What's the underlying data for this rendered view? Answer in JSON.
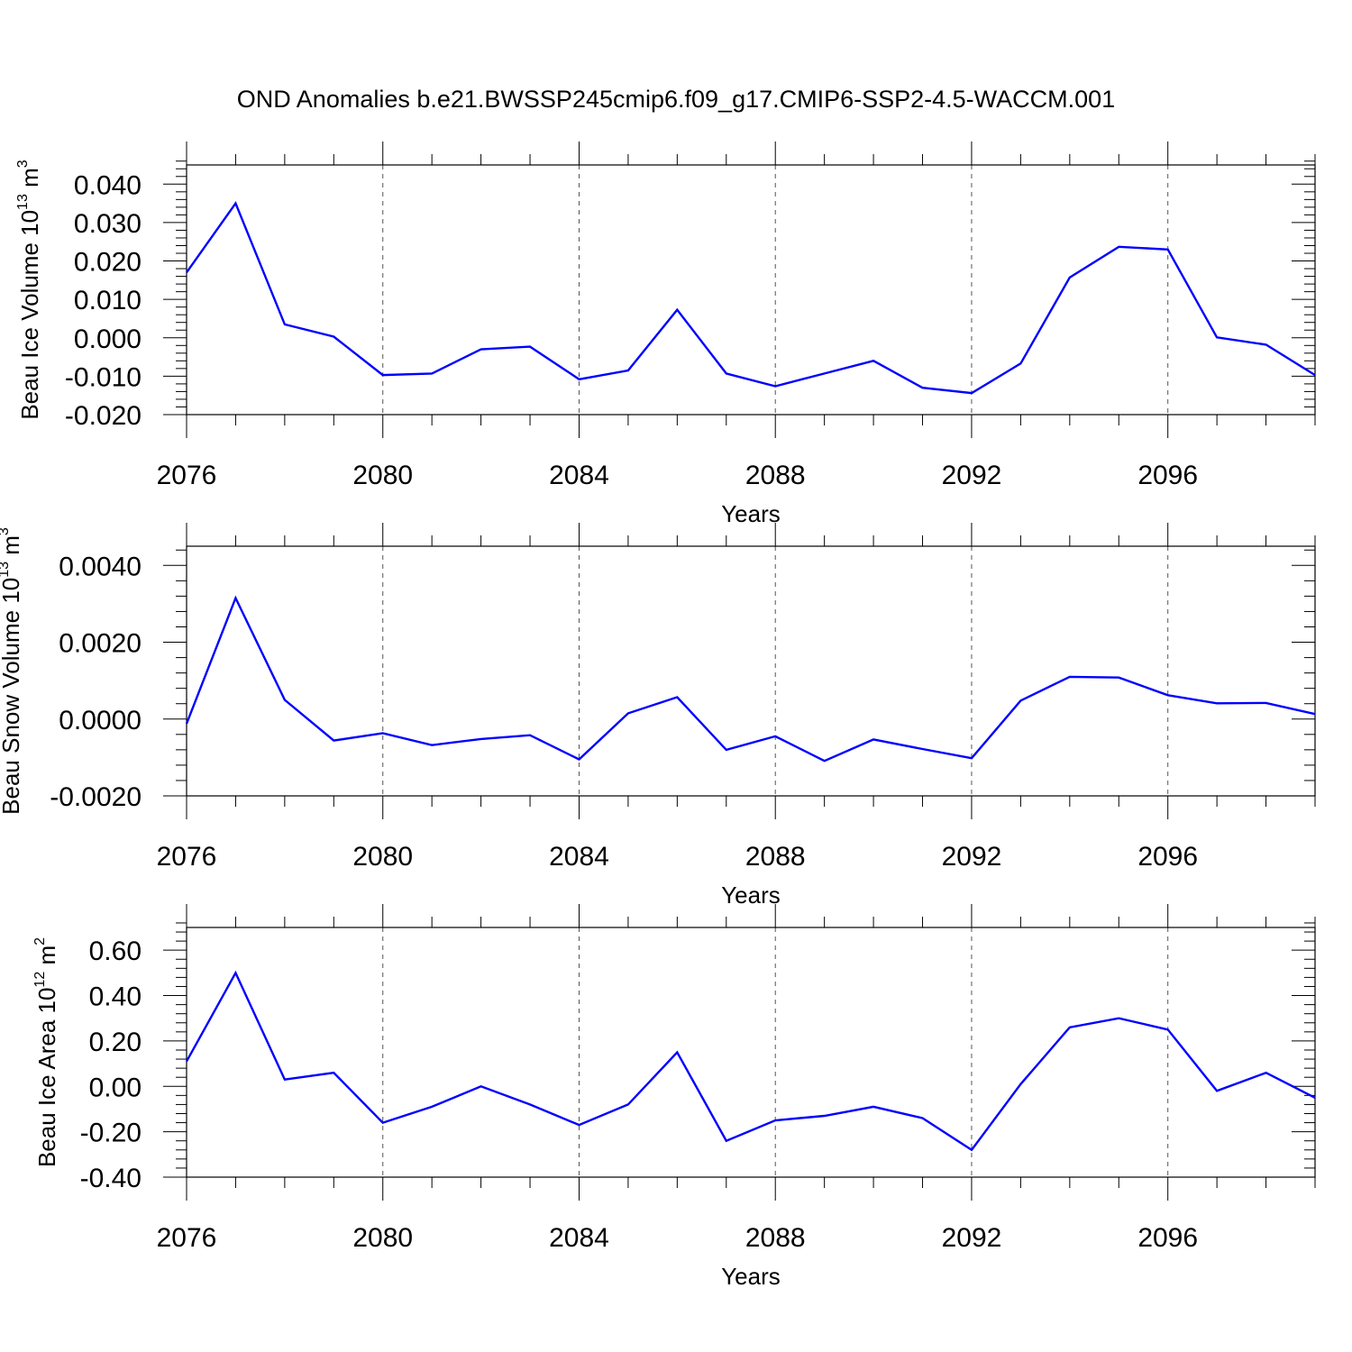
{
  "title": "OND Anomalies b.e21.BWSSP245cmip6.f09_g17.CMIP6-SSP2-4.5-WACCM.001",
  "series_color": "#0000ff",
  "chart_data": [
    {
      "type": "line",
      "ylabel": "Beau Ice Volume 10",
      "ylabel_sup": "13",
      "ylabel_unit": " m",
      "ylabel_unit_sup": "3",
      "xlabel": "Years",
      "xlim": [
        2076,
        2099
      ],
      "ylim": [
        -0.02,
        0.045
      ],
      "xticks": [
        2076,
        2080,
        2084,
        2088,
        2092,
        2096
      ],
      "yticks": [
        -0.02,
        -0.01,
        0.0,
        0.01,
        0.02,
        0.03,
        0.04
      ],
      "ytick_labels": [
        "-0.020",
        "-0.010",
        "0.000",
        "0.010",
        "0.020",
        "0.030",
        "0.040"
      ],
      "grid_x": [
        2080,
        2084,
        2088,
        2092,
        2096
      ],
      "x": [
        2076,
        2077,
        2078,
        2079,
        2080,
        2081,
        2082,
        2083,
        2084,
        2085,
        2086,
        2087,
        2088,
        2089,
        2090,
        2091,
        2092,
        2093,
        2094,
        2095,
        2096,
        2097,
        2098,
        2099
      ],
      "values": [
        0.017,
        0.035,
        0.0035,
        0.0003,
        -0.0097,
        -0.0093,
        -0.003,
        -0.0023,
        -0.0108,
        -0.0085,
        0.0073,
        -0.0093,
        -0.0126,
        -0.0093,
        -0.006,
        -0.013,
        -0.0144,
        -0.0067,
        0.0157,
        0.0237,
        0.023,
        0.0001,
        -0.0018,
        -0.0097
      ]
    },
    {
      "type": "line",
      "ylabel": "Beau Snow Volume 10",
      "ylabel_sup": "13",
      "ylabel_unit": " m",
      "ylabel_unit_sup": "3",
      "xlabel": "Years",
      "xlim": [
        2076,
        2099
      ],
      "ylim": [
        -0.002,
        0.0045
      ],
      "xticks": [
        2076,
        2080,
        2084,
        2088,
        2092,
        2096
      ],
      "yticks": [
        -0.002,
        0.0,
        0.002,
        0.004
      ],
      "ytick_labels": [
        "-0.0020",
        "0.0000",
        "0.0020",
        "0.0040"
      ],
      "grid_x": [
        2080,
        2084,
        2088,
        2092,
        2096
      ],
      "x": [
        2076,
        2077,
        2078,
        2079,
        2080,
        2081,
        2082,
        2083,
        2084,
        2085,
        2086,
        2087,
        2088,
        2089,
        2090,
        2091,
        2092,
        2093,
        2094,
        2095,
        2096,
        2097,
        2098,
        2099
      ],
      "values": [
        -0.00012,
        0.00315,
        0.0005,
        -0.00056,
        -0.00037,
        -0.00068,
        -0.00052,
        -0.00042,
        -0.00105,
        0.00015,
        0.00057,
        -0.0008,
        -0.00045,
        -0.00109,
        -0.00053,
        -0.00078,
        -0.00102,
        0.00048,
        0.0011,
        0.00108,
        0.00062,
        0.00041,
        0.00042,
        0.00013
      ]
    },
    {
      "type": "line",
      "ylabel": "Beau Ice Area 10",
      "ylabel_sup": "12",
      "ylabel_unit": " m",
      "ylabel_unit_sup": "2",
      "xlabel": "Years",
      "xlim": [
        2076,
        2099
      ],
      "ylim": [
        -0.4,
        0.7
      ],
      "xticks": [
        2076,
        2080,
        2084,
        2088,
        2092,
        2096
      ],
      "yticks": [
        -0.4,
        -0.2,
        0.0,
        0.2,
        0.4,
        0.6
      ],
      "ytick_labels": [
        "-0.40",
        "-0.20",
        "0.00",
        "0.20",
        "0.40",
        "0.60"
      ],
      "grid_x": [
        2080,
        2084,
        2088,
        2092,
        2096
      ],
      "x": [
        2076,
        2077,
        2078,
        2079,
        2080,
        2081,
        2082,
        2083,
        2084,
        2085,
        2086,
        2087,
        2088,
        2089,
        2090,
        2091,
        2092,
        2093,
        2094,
        2095,
        2096,
        2097,
        2098,
        2099
      ],
      "values": [
        0.11,
        0.5,
        0.03,
        0.06,
        -0.16,
        -0.09,
        0.0,
        -0.08,
        -0.17,
        -0.08,
        0.15,
        -0.24,
        -0.15,
        -0.13,
        -0.09,
        -0.14,
        -0.28,
        0.01,
        0.26,
        0.3,
        0.25,
        -0.02,
        0.06,
        -0.05
      ]
    }
  ]
}
